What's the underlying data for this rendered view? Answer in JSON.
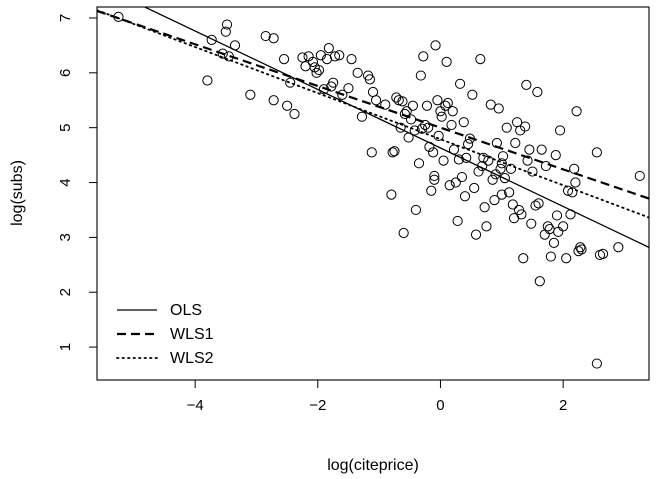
{
  "chart_data": {
    "type": "scatter",
    "title": "",
    "xlabel": "log(citeprice)",
    "ylabel": "log(subs)",
    "xlim": [
      -5.6,
      3.4
    ],
    "ylim": [
      0.4,
      7.2
    ],
    "x_ticks": [
      -4,
      -2,
      0,
      2
    ],
    "x_tick_labels": [
      "−4",
      "−2",
      "0",
      "2"
    ],
    "y_ticks": [
      1,
      2,
      3,
      4,
      5,
      6,
      7
    ],
    "y_tick_labels": [
      "1",
      "2",
      "3",
      "4",
      "5",
      "6",
      "7"
    ],
    "grid": false,
    "legend_position": "bottom-left",
    "points": [
      [
        -5.25,
        7.02
      ],
      [
        -3.8,
        5.86
      ],
      [
        -3.73,
        6.6
      ],
      [
        -3.55,
        6.35
      ],
      [
        -3.5,
        6.75
      ],
      [
        -3.48,
        6.88
      ],
      [
        -3.45,
        6.3
      ],
      [
        -3.35,
        6.5
      ],
      [
        -3.1,
        5.6
      ],
      [
        -2.85,
        6.67
      ],
      [
        -2.72,
        6.63
      ],
      [
        -2.72,
        5.5
      ],
      [
        -2.55,
        6.25
      ],
      [
        -2.5,
        5.4
      ],
      [
        -2.45,
        5.82
      ],
      [
        -2.38,
        5.25
      ],
      [
        -2.25,
        6.28
      ],
      [
        -2.2,
        6.12
      ],
      [
        -2.15,
        6.3
      ],
      [
        -2.08,
        6.2
      ],
      [
        -2.05,
        6.1
      ],
      [
        -2.02,
        6.0
      ],
      [
        -1.98,
        6.05
      ],
      [
        -1.95,
        6.32
      ],
      [
        -1.9,
        5.7
      ],
      [
        -1.85,
        6.25
      ],
      [
        -1.82,
        6.45
      ],
      [
        -1.78,
        5.75
      ],
      [
        -1.75,
        5.82
      ],
      [
        -1.72,
        6.3
      ],
      [
        -1.65,
        6.32
      ],
      [
        -1.6,
        5.6
      ],
      [
        -1.5,
        5.72
      ],
      [
        -1.45,
        6.25
      ],
      [
        -1.35,
        6.0
      ],
      [
        -1.28,
        5.2
      ],
      [
        -1.18,
        5.95
      ],
      [
        -1.15,
        5.88
      ],
      [
        -1.12,
        4.55
      ],
      [
        -1.1,
        5.65
      ],
      [
        -1.05,
        5.5
      ],
      [
        -0.9,
        5.42
      ],
      [
        -0.8,
        3.78
      ],
      [
        -0.78,
        4.55
      ],
      [
        -0.75,
        4.57
      ],
      [
        -0.72,
        5.55
      ],
      [
        -0.68,
        5.5
      ],
      [
        -0.65,
        5.0
      ],
      [
        -0.62,
        5.48
      ],
      [
        -0.6,
        3.08
      ],
      [
        -0.58,
        5.25
      ],
      [
        -0.55,
        5.3
      ],
      [
        -0.52,
        4.82
      ],
      [
        -0.48,
        5.15
      ],
      [
        -0.45,
        5.4
      ],
      [
        -0.42,
        4.95
      ],
      [
        -0.4,
        3.5
      ],
      [
        -0.35,
        4.35
      ],
      [
        -0.32,
        5.95
      ],
      [
        -0.3,
        4.98
      ],
      [
        -0.28,
        6.3
      ],
      [
        -0.25,
        5.05
      ],
      [
        -0.22,
        5.4
      ],
      [
        -0.2,
        5.0
      ],
      [
        -0.18,
        4.65
      ],
      [
        -0.15,
        3.85
      ],
      [
        -0.12,
        4.55
      ],
      [
        -0.1,
        4.12
      ],
      [
        -0.08,
        6.5
      ],
      [
        -0.05,
        5.5
      ],
      [
        -0.03,
        4.85
      ],
      [
        0.0,
        5.3
      ],
      [
        0.02,
        5.2
      ],
      [
        0.05,
        4.4
      ],
      [
        0.08,
        5.4
      ],
      [
        0.1,
        6.2
      ],
      [
        0.12,
        5.45
      ],
      [
        0.15,
        3.95
      ],
      [
        0.18,
        5.05
      ],
      [
        0.2,
        5.3
      ],
      [
        0.22,
        4.6
      ],
      [
        0.25,
        4.0
      ],
      [
        0.28,
        3.3
      ],
      [
        0.3,
        4.42
      ],
      [
        0.32,
        5.8
      ],
      [
        0.35,
        4.1
      ],
      [
        0.38,
        5.1
      ],
      [
        0.42,
        4.45
      ],
      [
        0.45,
        4.7
      ],
      [
        0.48,
        4.8
      ],
      [
        0.52,
        5.6
      ],
      [
        0.55,
        3.9
      ],
      [
        0.58,
        3.05
      ],
      [
        0.62,
        4.2
      ],
      [
        0.65,
        6.25
      ],
      [
        0.68,
        4.3
      ],
      [
        0.72,
        3.55
      ],
      [
        0.75,
        3.2
      ],
      [
        0.78,
        4.4
      ],
      [
        0.82,
        5.42
      ],
      [
        0.85,
        4.05
      ],
      [
        0.88,
        3.68
      ],
      [
        0.9,
        4.15
      ],
      [
        0.92,
        4.72
      ],
      [
        0.95,
        5.35
      ],
      [
        0.98,
        4.25
      ],
      [
        1.0,
        3.78
      ],
      [
        1.02,
        4.48
      ],
      [
        1.05,
        4.08
      ],
      [
        1.08,
        5.0
      ],
      [
        1.12,
        3.82
      ],
      [
        1.15,
        4.25
      ],
      [
        1.18,
        3.6
      ],
      [
        1.2,
        3.35
      ],
      [
        1.22,
        4.72
      ],
      [
        1.25,
        5.1
      ],
      [
        1.28,
        3.5
      ],
      [
        1.3,
        4.95
      ],
      [
        1.32,
        3.42
      ],
      [
        1.35,
        2.62
      ],
      [
        1.38,
        5.02
      ],
      [
        1.4,
        5.78
      ],
      [
        1.42,
        4.4
      ],
      [
        1.45,
        4.6
      ],
      [
        1.48,
        3.25
      ],
      [
        1.5,
        4.2
      ],
      [
        1.55,
        3.58
      ],
      [
        1.58,
        5.65
      ],
      [
        1.6,
        3.62
      ],
      [
        1.62,
        2.2
      ],
      [
        1.65,
        4.6
      ],
      [
        1.7,
        3.05
      ],
      [
        1.72,
        4.3
      ],
      [
        1.75,
        3.2
      ],
      [
        1.78,
        3.15
      ],
      [
        1.8,
        2.65
      ],
      [
        1.85,
        2.9
      ],
      [
        1.88,
        4.5
      ],
      [
        1.9,
        3.4
      ],
      [
        1.92,
        3.1
      ],
      [
        1.95,
        4.95
      ],
      [
        2.0,
        3.2
      ],
      [
        2.05,
        2.62
      ],
      [
        2.08,
        3.85
      ],
      [
        2.12,
        3.42
      ],
      [
        2.15,
        3.82
      ],
      [
        2.18,
        4.25
      ],
      [
        2.2,
        4.0
      ],
      [
        2.22,
        5.3
      ],
      [
        2.25,
        2.75
      ],
      [
        2.28,
        2.82
      ],
      [
        2.3,
        2.78
      ],
      [
        2.55,
        4.55
      ],
      [
        2.6,
        2.68
      ],
      [
        2.65,
        2.7
      ],
      [
        2.55,
        0.7
      ],
      [
        2.9,
        2.82
      ],
      [
        3.25,
        4.12
      ],
      [
        1.0,
        4.35
      ],
      [
        0.7,
        4.45
      ],
      [
        -0.1,
        4.05
      ],
      [
        0.4,
        3.75
      ]
    ],
    "series": [
      {
        "name": "OLS",
        "line_style": "solid",
        "stroke_width": 1.3,
        "intercept": 4.63,
        "slope": -0.533
      },
      {
        "name": "WLS1",
        "line_style": "dashed",
        "stroke_width": 2.2,
        "intercept": 5.0,
        "slope": -0.38
      },
      {
        "name": "WLS2",
        "line_style": "dotted",
        "stroke_width": 1.8,
        "intercept": 4.79,
        "slope": -0.42
      }
    ],
    "colors": {
      "foreground": "#000000",
      "background": "#ffffff"
    }
  }
}
